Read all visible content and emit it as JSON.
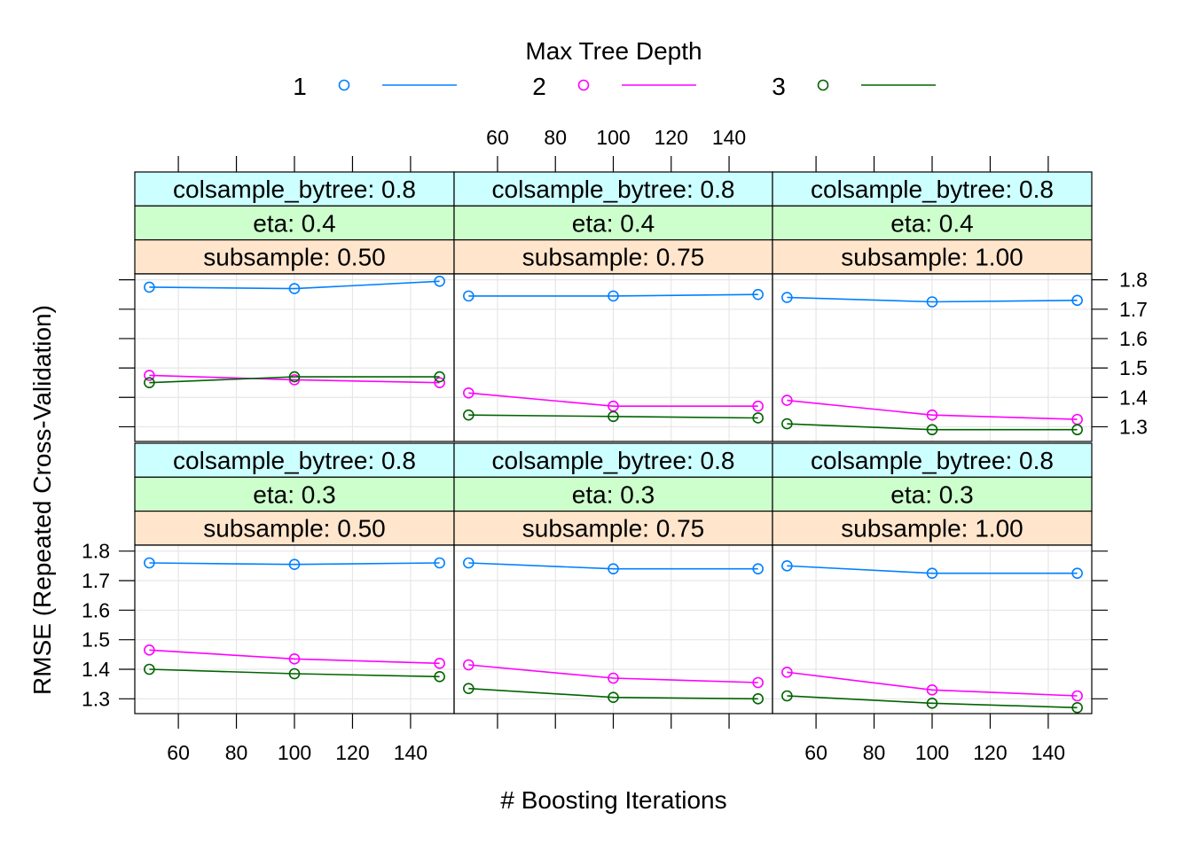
{
  "chart_data": {
    "type": "line",
    "title": "",
    "xlabel": "# Boosting Iterations",
    "ylabel": "RMSE (Repeated Cross-Validation)",
    "xlim": [
      45,
      155
    ],
    "ylim": [
      1.25,
      1.82
    ],
    "x_ticks": [
      60,
      80,
      100,
      120,
      140
    ],
    "y_ticks": [
      1.3,
      1.4,
      1.5,
      1.6,
      1.7,
      1.8
    ],
    "x_tick_labels": [
      "60",
      "80",
      "100",
      "120",
      "140"
    ],
    "y_tick_labels": [
      "1.3",
      "1.4",
      "1.5",
      "1.6",
      "1.7",
      "1.8"
    ],
    "grid": true,
    "legend": {
      "title": "Max Tree Depth",
      "position": "top",
      "entries": [
        {
          "label": "1",
          "color": "#0080ff"
        },
        {
          "label": "2",
          "color": "#ff00ff"
        },
        {
          "label": "3",
          "color": "#006400"
        }
      ]
    },
    "x": [
      50,
      100,
      150
    ],
    "panels": [
      {
        "strips": [
          "colsample_bytree: 0.8",
          "eta: 0.4",
          "subsample: 0.50"
        ],
        "series": [
          {
            "name": "1",
            "values": [
              1.775,
              1.77,
              1.795
            ]
          },
          {
            "name": "2",
            "values": [
              1.475,
              1.46,
              1.45
            ]
          },
          {
            "name": "3",
            "values": [
              1.45,
              1.47,
              1.47
            ]
          }
        ]
      },
      {
        "strips": [
          "colsample_bytree: 0.8",
          "eta: 0.4",
          "subsample: 0.75"
        ],
        "series": [
          {
            "name": "1",
            "values": [
              1.745,
              1.745,
              1.75
            ]
          },
          {
            "name": "2",
            "values": [
              1.415,
              1.37,
              1.37
            ]
          },
          {
            "name": "3",
            "values": [
              1.34,
              1.335,
              1.33
            ]
          }
        ]
      },
      {
        "strips": [
          "colsample_bytree: 0.8",
          "eta: 0.4",
          "subsample: 1.00"
        ],
        "series": [
          {
            "name": "1",
            "values": [
              1.74,
              1.725,
              1.73
            ]
          },
          {
            "name": "2",
            "values": [
              1.39,
              1.34,
              1.325
            ]
          },
          {
            "name": "3",
            "values": [
              1.31,
              1.29,
              1.29
            ]
          }
        ]
      },
      {
        "strips": [
          "colsample_bytree: 0.8",
          "eta: 0.3",
          "subsample: 0.50"
        ],
        "series": [
          {
            "name": "1",
            "values": [
              1.76,
              1.755,
              1.76
            ]
          },
          {
            "name": "2",
            "values": [
              1.465,
              1.435,
              1.42
            ]
          },
          {
            "name": "3",
            "values": [
              1.4,
              1.385,
              1.375
            ]
          }
        ]
      },
      {
        "strips": [
          "colsample_bytree: 0.8",
          "eta: 0.3",
          "subsample: 0.75"
        ],
        "series": [
          {
            "name": "1",
            "values": [
              1.76,
              1.74,
              1.74
            ]
          },
          {
            "name": "2",
            "values": [
              1.415,
              1.37,
              1.355
            ]
          },
          {
            "name": "3",
            "values": [
              1.335,
              1.305,
              1.3
            ]
          }
        ]
      },
      {
        "strips": [
          "colsample_bytree: 0.8",
          "eta: 0.3",
          "subsample: 1.00"
        ],
        "series": [
          {
            "name": "1",
            "values": [
              1.75,
              1.725,
              1.725
            ]
          },
          {
            "name": "2",
            "values": [
              1.39,
              1.33,
              1.31
            ]
          },
          {
            "name": "3",
            "values": [
              1.31,
              1.285,
              1.27
            ]
          }
        ]
      }
    ],
    "strip_colors": [
      "#ccffff",
      "#ccffcc",
      "#ffe5cc"
    ]
  }
}
